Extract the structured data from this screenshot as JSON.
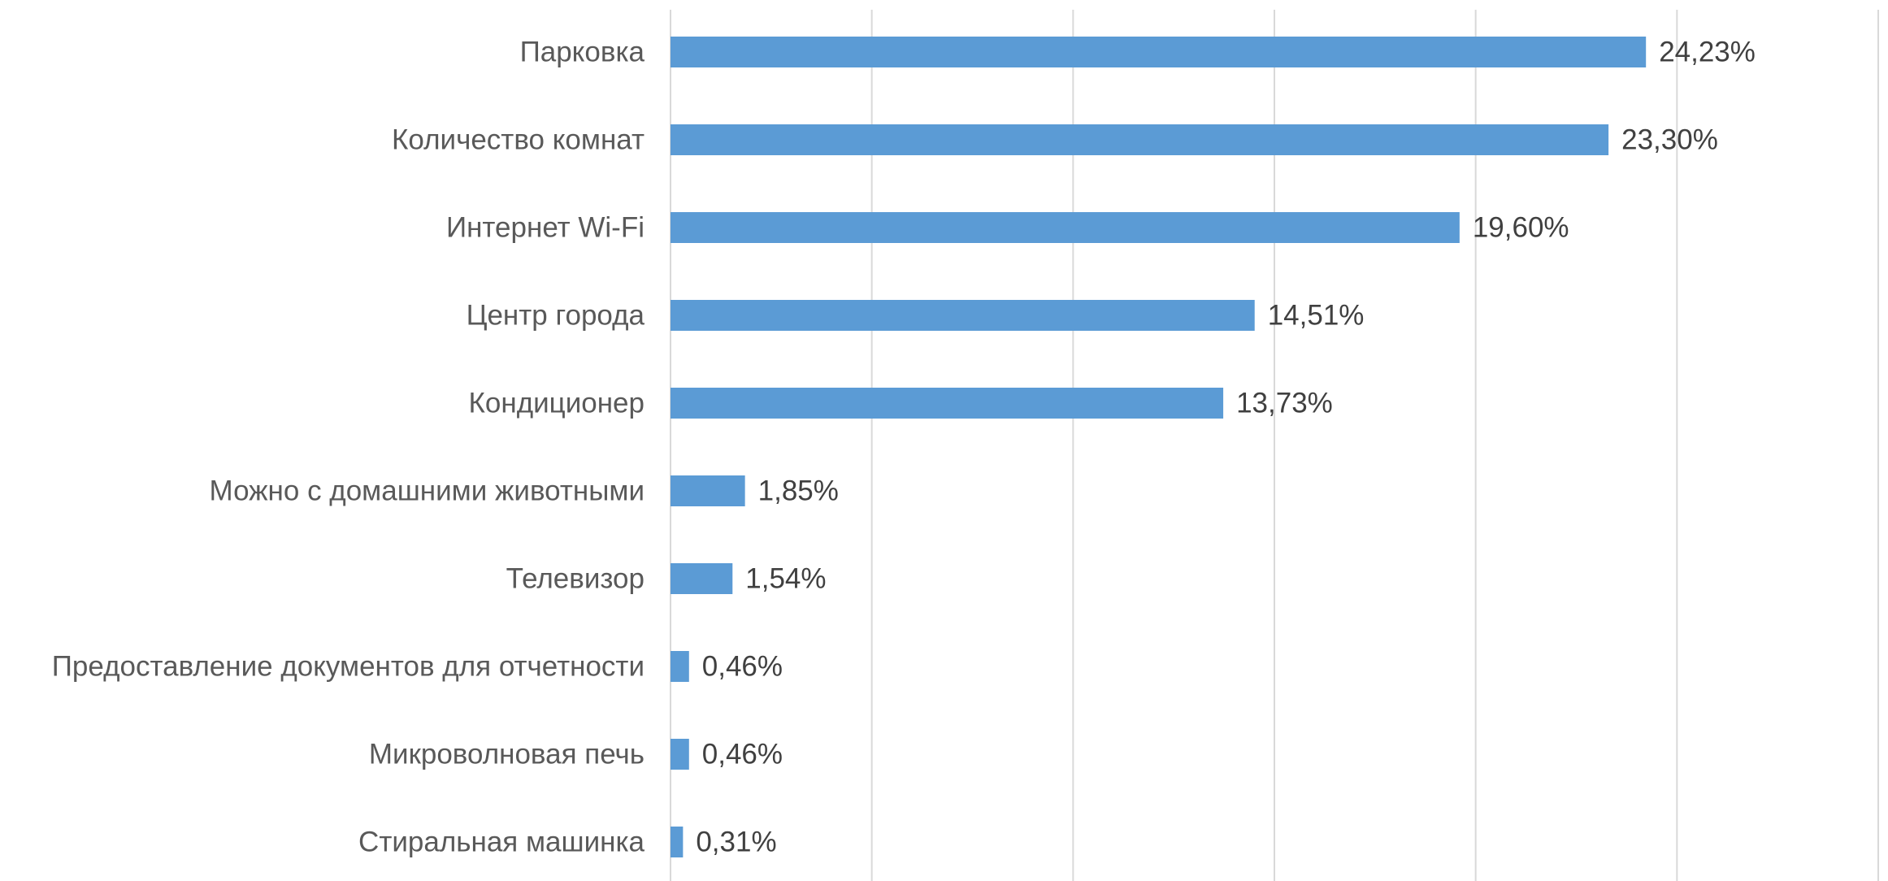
{
  "chart_data": {
    "type": "bar",
    "orientation": "horizontal",
    "categories": [
      "Парковка",
      "Количество комнат",
      "Интернет Wi-Fi",
      "Центр города",
      "Кондиционер",
      "Можно с домашними животными",
      "Телевизор",
      "Предоставление документов для отчетности",
      "Микроволновая печь",
      "Стиральная машинка"
    ],
    "values": [
      24.23,
      23.3,
      19.6,
      14.51,
      13.73,
      1.85,
      1.54,
      0.46,
      0.46,
      0.31
    ],
    "value_labels": [
      "24,23%",
      "23,30%",
      "19,60%",
      "14,51%",
      "13,73%",
      "1,85%",
      "1,54%",
      "0,46%",
      "0,46%",
      "0,31%"
    ],
    "color": "#5b9bd5",
    "xlim": [
      0,
      30
    ],
    "xticks": [
      0,
      5,
      10,
      15,
      20,
      25,
      30
    ],
    "grid": true
  }
}
